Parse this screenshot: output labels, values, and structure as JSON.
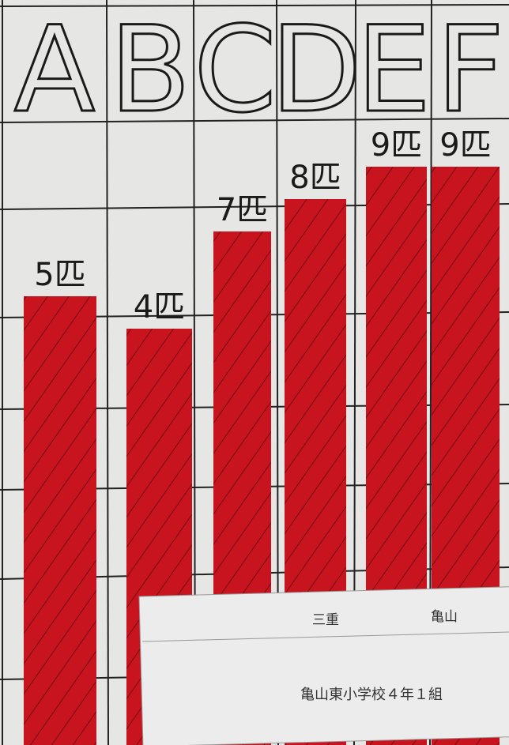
{
  "chart_data": {
    "type": "bar",
    "categories": [
      "A",
      "B",
      "C",
      "D",
      "E",
      "F"
    ],
    "values": [
      5,
      4,
      7,
      8,
      9,
      9
    ],
    "value_labels": [
      "5匹",
      "4匹",
      "7匹",
      "8匹",
      "9匹",
      "9匹"
    ],
    "color": "#c8141e"
  },
  "sheet": {
    "prefecture": "三重",
    "city": "亀山",
    "class": "亀山東小学校４年１組"
  }
}
